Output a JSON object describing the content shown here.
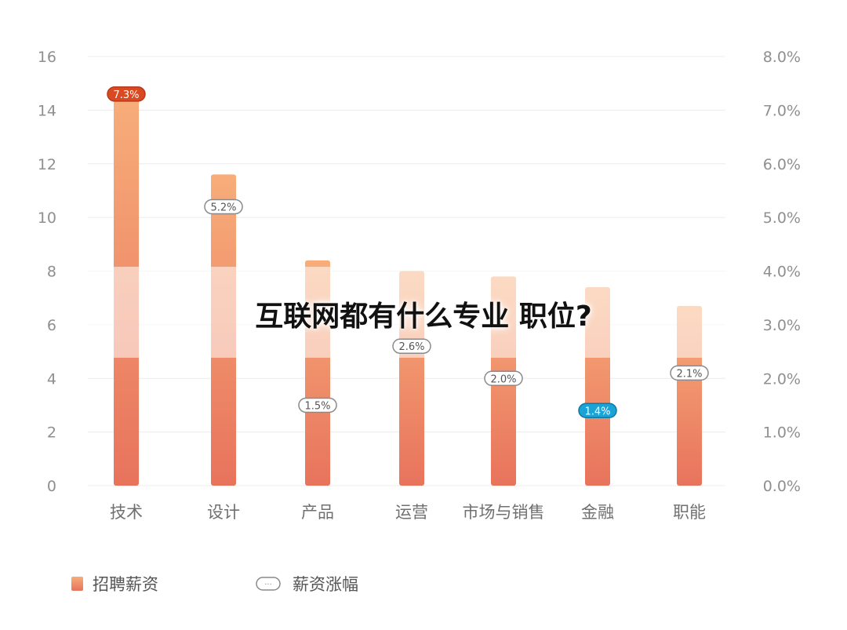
{
  "overlay_title": "互联网都有什么专业 职位?",
  "chart_data": {
    "type": "bar",
    "categories": [
      "技术",
      "设计",
      "产品",
      "运营",
      "市场与销售",
      "金融",
      "职能"
    ],
    "series": [
      {
        "name": "招聘薪资",
        "axis": "left",
        "values": [
          14.5,
          11.6,
          8.4,
          8.0,
          7.8,
          7.4,
          6.7
        ]
      },
      {
        "name": "薪资涨幅",
        "axis": "right",
        "values": [
          7.3,
          5.2,
          1.5,
          2.6,
          2.0,
          1.4,
          2.1
        ],
        "labels": [
          "7.3%",
          "5.2%",
          "1.5%",
          "2.6%",
          "2.0%",
          "1.4%",
          "2.1%"
        ]
      }
    ],
    "y_left": {
      "min": 0,
      "max": 16,
      "ticks": [
        "0",
        "2",
        "4",
        "6",
        "8",
        "10",
        "12",
        "14",
        "16"
      ]
    },
    "y_right": {
      "min": 0,
      "max": 8,
      "ticks": [
        "0.0%",
        "1.0%",
        "2.0%",
        "3.0%",
        "4.0%",
        "5.0%",
        "6.0%",
        "7.0%",
        "8.0%"
      ]
    },
    "grid": true,
    "legend_position": "bottom-left",
    "colors": {
      "bar_top": "#f7ad7a",
      "bar_bottom": "#e8735c",
      "highlight_badge": "#d94a22",
      "blue_badge": "#1aa3d6",
      "badge_border": "#8a8a8a"
    },
    "badge_styles": [
      "red",
      "white",
      "white",
      "white",
      "white",
      "blue",
      "white"
    ]
  }
}
